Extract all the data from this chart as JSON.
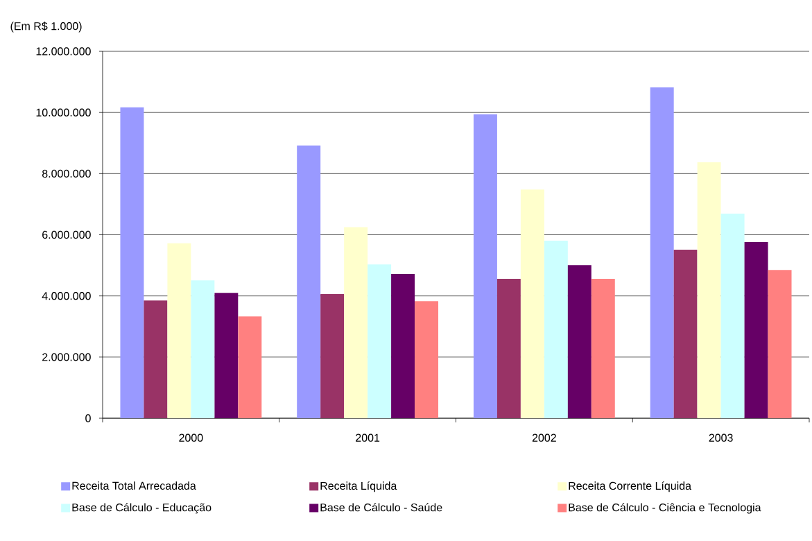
{
  "chart_data": {
    "type": "bar",
    "ylabel": "(Em R$ 1.000)",
    "categories": [
      "2000",
      "2001",
      "2002",
      "2003"
    ],
    "series": [
      {
        "name": "Receita Total Arrecadada",
        "color": "#9999ff",
        "values": [
          10170000,
          8920000,
          9940000,
          10820000
        ]
      },
      {
        "name": "Receita Líquida",
        "color": "#993366",
        "values": [
          3850000,
          4060000,
          4560000,
          5510000
        ]
      },
      {
        "name": "Receita Corrente Líquida",
        "color": "#ffffcc",
        "values": [
          5720000,
          6250000,
          7480000,
          8370000
        ]
      },
      {
        "name": "Base de Cálculo - Educação",
        "color": "#ccffff",
        "values": [
          4510000,
          5030000,
          5810000,
          6690000
        ]
      },
      {
        "name": "Base de Cálculo - Saúde",
        "color": "#660066",
        "values": [
          4100000,
          4720000,
          5010000,
          5760000
        ]
      },
      {
        "name": "Base de Cálculo - Ciência e Tecnologia",
        "color": "#ff8080",
        "values": [
          3330000,
          3830000,
          4560000,
          4850000
        ]
      }
    ],
    "ylim": [
      0,
      12000000
    ],
    "yticks": [
      0,
      {
        "value": 2000000,
        "label": "2.000.000"
      },
      {
        "value": 4000000,
        "label": "4.000.000"
      },
      {
        "value": 6000000,
        "label": "6.000.000"
      },
      {
        "value": 8000000,
        "label": "8.000.000"
      },
      {
        "value": 10000000,
        "label": "10.000.000"
      },
      {
        "value": 12000000,
        "label": "12.000.000"
      }
    ],
    "grid": "y",
    "legend": "bottom"
  }
}
